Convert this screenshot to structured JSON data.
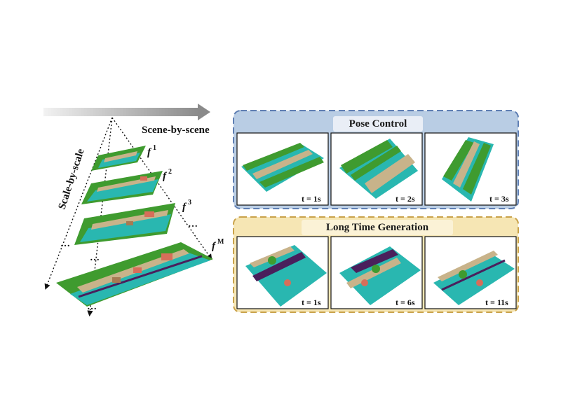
{
  "left": {
    "horizontal_axis_label": "Scene-by-scene",
    "vertical_axis_label": "Scale-by-scale",
    "scale_labels": [
      "1",
      "2",
      "3",
      "M"
    ],
    "ellipsis": [
      "…",
      "…",
      "…",
      "…"
    ]
  },
  "pose_control": {
    "title": "Pose Control",
    "frames": [
      "t = 1s",
      "t = 2s",
      "t = 3s"
    ]
  },
  "long_time": {
    "title": "Long Time Generation",
    "frames": [
      "t = 1s",
      "t = 6s",
      "t = 11s"
    ]
  },
  "colors": {
    "pose_panel_bg": "#b9cde4",
    "pose_panel_border": "#5f7fb3",
    "long_panel_bg": "#f6e6b4",
    "long_panel_border": "#c9a24a",
    "road": "#29b7b0",
    "vegetation": "#3f9b2f",
    "sidewalk": "#c8b38a",
    "building": "#a67b53",
    "car": "#d76e5a",
    "dark": "#4a1f5c"
  }
}
